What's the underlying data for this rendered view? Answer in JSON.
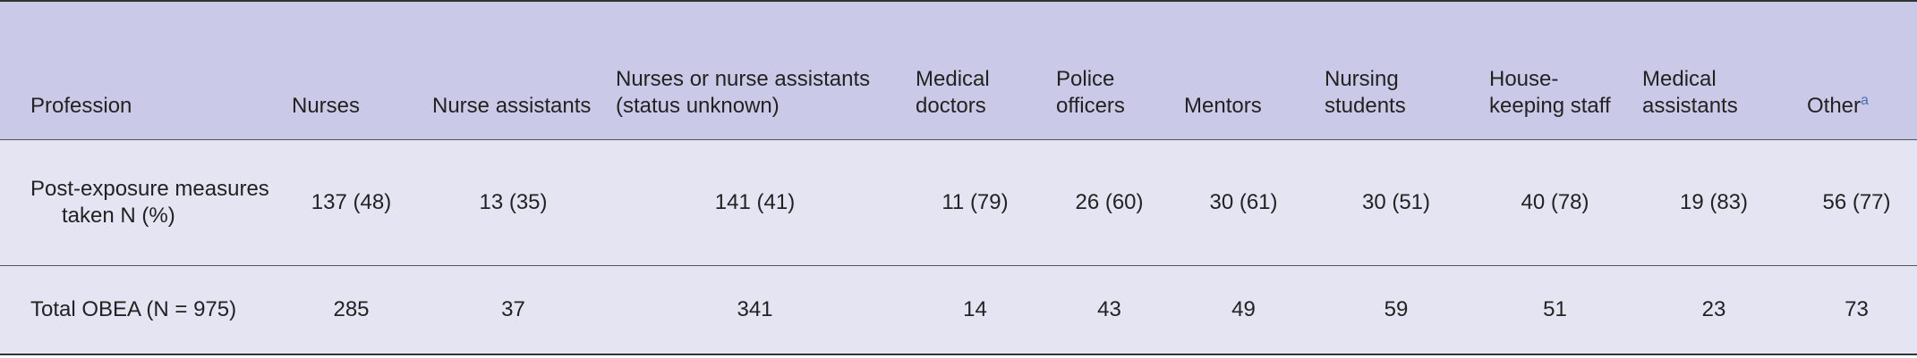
{
  "table": {
    "header": [
      "Profession",
      "Nurses",
      "Nurse assistants",
      "Nurses or nurse assistants (status unknown)",
      "Medical doctors",
      "Police officers",
      "Mentors",
      "Nursing students",
      "House-keeping staff",
      "Medical assistants",
      "Other"
    ],
    "header_note": "a",
    "rows": [
      [
        "Post-exposure measures taken N (%)",
        "137 (48)",
        "13 (35)",
        "141 (41)",
        "11 (79)",
        "26 (60)",
        "30 (61)",
        "30 (51)",
        "40 (78)",
        "19 (83)",
        "56 (77)"
      ],
      [
        "Total OBEA (N = 975)",
        "285",
        "37",
        "341",
        "14",
        "43",
        "49",
        "59",
        "51",
        "23",
        "73"
      ]
    ]
  }
}
